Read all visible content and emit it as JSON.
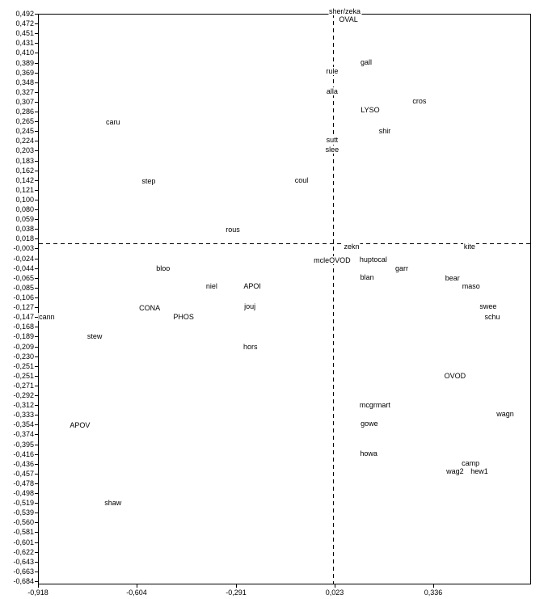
{
  "colors": {
    "background": "#ffffff",
    "frame": "#000000",
    "text": "#000000",
    "reference_line": "#000000"
  },
  "chart_data": {
    "type": "scatter",
    "title": "",
    "xlabel": "",
    "ylabel": "",
    "grid": false,
    "legend": false,
    "marker_style": "text-label-only",
    "decimal_separator": ",",
    "x_axis": {
      "range": [
        -0.918,
        0.6436
      ],
      "tick_values": [
        -0.918,
        -0.604,
        -0.291,
        0.023,
        0.336
      ],
      "tick_labels": [
        "-0,918",
        "-0,604",
        "-0,291",
        "0,023",
        "0,336"
      ]
    },
    "y_axis": {
      "range": [
        -0.689,
        0.492
      ],
      "tick_labels": [
        "0,492",
        "0,472",
        "0,451",
        "0,431",
        "0,410",
        "0,389",
        "0,369",
        "0,348",
        "0,327",
        "0,307",
        "0,286",
        "0,265",
        "0,245",
        "0,224",
        "0,203",
        "0,183",
        "0,162",
        "0,142",
        "0,121",
        "0,100",
        "0,080",
        "0,059",
        "0,038",
        "0,018",
        "-0,003",
        "-0,024",
        "-0,044",
        "-0,065",
        "-0,085",
        "-0,106",
        "-0,127",
        "-0,147",
        "-0,168",
        "-0,189",
        "-0,209",
        "-0,230",
        "-0,251",
        "-0,251",
        "-0,271",
        "-0,292",
        "-0,312",
        "-0,333",
        "-0,354",
        "-0,374",
        "-0,395",
        "-0,416",
        "-0,436",
        "-0,457",
        "-0,478",
        "-0,498",
        "-0,519",
        "-0,539",
        "-0,560",
        "-0,581",
        "-0,601",
        "-0,622",
        "-0,643",
        "-0,663",
        "-0,684"
      ]
    },
    "reference_lines": {
      "style": "dashed",
      "x": 0.018,
      "y": 0.017
    },
    "points": [
      {
        "label": "sher/zeka",
        "x": 0.055,
        "y": 0.497
      },
      {
        "label": "OVAL",
        "x": 0.067,
        "y": 0.48
      },
      {
        "label": "gall",
        "x": 0.123,
        "y": 0.391
      },
      {
        "label": "rule",
        "x": 0.015,
        "y": 0.373
      },
      {
        "label": "alla",
        "x": 0.015,
        "y": 0.331
      },
      {
        "label": "cros",
        "x": 0.292,
        "y": 0.311
      },
      {
        "label": "LYSO",
        "x": 0.136,
        "y": 0.292
      },
      {
        "label": "shir",
        "x": 0.182,
        "y": 0.249
      },
      {
        "label": "sutt",
        "x": 0.015,
        "y": 0.23
      },
      {
        "label": "slee",
        "x": 0.015,
        "y": 0.211
      },
      {
        "label": "caru",
        "x": -0.68,
        "y": 0.268
      },
      {
        "label": "step",
        "x": -0.567,
        "y": 0.145
      },
      {
        "label": "coul",
        "x": -0.082,
        "y": 0.147
      },
      {
        "label": "rous",
        "x": -0.3,
        "y": 0.045
      },
      {
        "label": "zekn",
        "x": 0.077,
        "y": 0.01
      },
      {
        "label": "kite",
        "x": 0.451,
        "y": 0.01
      },
      {
        "label": "mcleOVOD",
        "x": 0.015,
        "y": -0.019
      },
      {
        "label": "huptocal",
        "x": 0.146,
        "y": -0.018
      },
      {
        "label": "bloo",
        "x": -0.521,
        "y": -0.036
      },
      {
        "label": "garr",
        "x": 0.236,
        "y": -0.036
      },
      {
        "label": "blan",
        "x": 0.126,
        "y": -0.054
      },
      {
        "label": "bear",
        "x": 0.397,
        "y": -0.056
      },
      {
        "label": "niel",
        "x": -0.367,
        "y": -0.073
      },
      {
        "label": "APOI",
        "x": -0.238,
        "y": -0.073
      },
      {
        "label": "maso",
        "x": 0.456,
        "y": -0.073
      },
      {
        "label": "jouj",
        "x": -0.246,
        "y": -0.114
      },
      {
        "label": "swee",
        "x": 0.51,
        "y": -0.114
      },
      {
        "label": "CONA",
        "x": -0.564,
        "y": -0.118
      },
      {
        "label": "PHOS",
        "x": -0.456,
        "y": -0.136
      },
      {
        "label": "cann",
        "x": -0.89,
        "y": -0.136
      },
      {
        "label": "schu",
        "x": 0.523,
        "y": -0.136
      },
      {
        "label": "stew",
        "x": -0.738,
        "y": -0.176
      },
      {
        "label": "hors",
        "x": -0.244,
        "y": -0.198
      },
      {
        "label": "OVOD",
        "x": 0.405,
        "y": -0.258
      },
      {
        "label": "mcgrmart",
        "x": 0.151,
        "y": -0.319
      },
      {
        "label": "wagn",
        "x": 0.564,
        "y": -0.337
      },
      {
        "label": "gowe",
        "x": 0.133,
        "y": -0.357
      },
      {
        "label": "APOV",
        "x": -0.785,
        "y": -0.361
      },
      {
        "label": "howa",
        "x": 0.131,
        "y": -0.419
      },
      {
        "label": "camp",
        "x": 0.454,
        "y": -0.439
      },
      {
        "label": "wag2",
        "x": 0.405,
        "y": -0.456
      },
      {
        "label": "hew1",
        "x": 0.482,
        "y": -0.456
      },
      {
        "label": "shaw",
        "x": -0.68,
        "y": -0.521
      }
    ]
  }
}
